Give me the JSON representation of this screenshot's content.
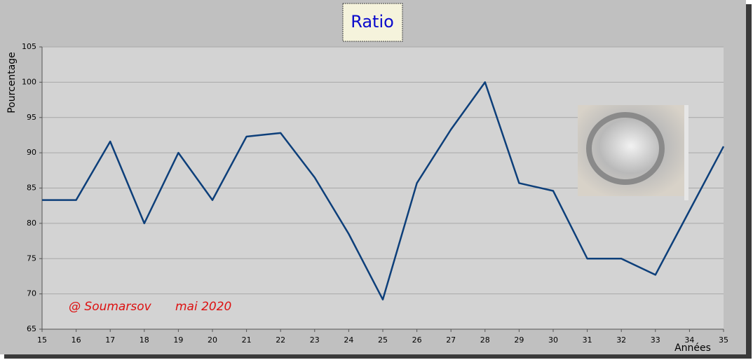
{
  "chart_data": {
    "type": "line",
    "title": "Ratio",
    "x_label": "Années",
    "y_label": "Pourcentage",
    "annotations": [
      "@ Soumarsov",
      "mai 2020"
    ],
    "x": [
      15,
      16,
      17,
      18,
      19,
      20,
      21,
      22,
      23,
      24,
      25,
      26,
      27,
      28,
      29,
      30,
      31,
      32,
      33,
      34,
      35
    ],
    "series": [
      {
        "color": "#0d3f7a",
        "values": [
          83.3,
          83.3,
          91.6,
          80,
          90,
          83.3,
          92.3,
          92.8,
          86.5,
          78.5,
          69.2,
          85.7,
          93.3,
          100,
          85.7,
          84.6,
          75,
          75,
          72.7,
          81.8,
          90.9
        ]
      }
    ],
    "xlim": [
      15,
      35
    ],
    "xticks": [
      15,
      16,
      17,
      18,
      19,
      20,
      21,
      22,
      23,
      24,
      25,
      26,
      27,
      28,
      29,
      30,
      31,
      32,
      33,
      34,
      35
    ],
    "ylim": [
      65,
      105
    ],
    "yticks": [
      65,
      70,
      75,
      80,
      85,
      90,
      95,
      100,
      105
    ],
    "grid": true
  }
}
